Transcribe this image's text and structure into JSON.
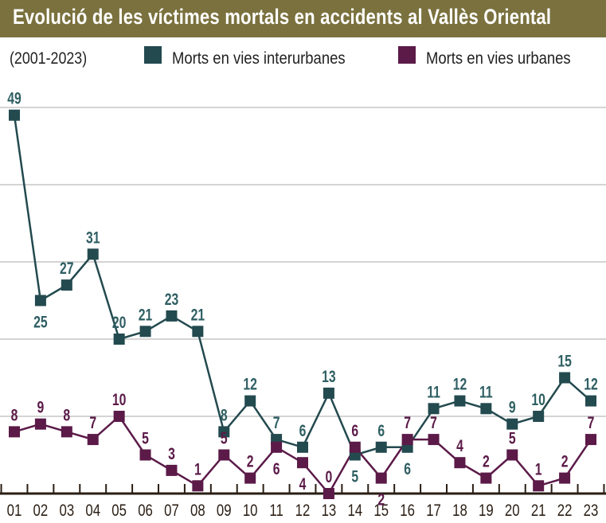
{
  "chart_data": {
    "type": "line",
    "title": "Evolució de les víctimes mortals en accidents al Vallès Oriental",
    "subtitle": "(2001-2023)",
    "categories": [
      "01",
      "02",
      "03",
      "04",
      "05",
      "06",
      "07",
      "08",
      "09",
      "10",
      "11",
      "12",
      "13",
      "14",
      "15",
      "16",
      "17",
      "18",
      "19",
      "20",
      "21",
      "22",
      "23"
    ],
    "ylim": [
      0,
      50
    ],
    "grid": true,
    "legend": "top",
    "series": [
      {
        "name": "Morts en vies interurbanes",
        "color": "#234a4f",
        "label_color": "#2f5f63",
        "values": [
          49,
          25,
          27,
          31,
          20,
          21,
          23,
          21,
          8,
          12,
          7,
          6,
          13,
          5,
          6,
          6,
          11,
          12,
          11,
          9,
          10,
          15,
          12
        ]
      },
      {
        "name": "Morts en vies urbanes",
        "color": "#5b1a48",
        "label_color": "#5b1a48",
        "values": [
          8,
          9,
          8,
          7,
          10,
          5,
          3,
          1,
          5,
          2,
          6,
          4,
          0,
          6,
          2,
          7,
          7,
          4,
          2,
          5,
          1,
          2,
          7
        ]
      }
    ]
  },
  "colors": {
    "title_bar": "#7a713e"
  }
}
